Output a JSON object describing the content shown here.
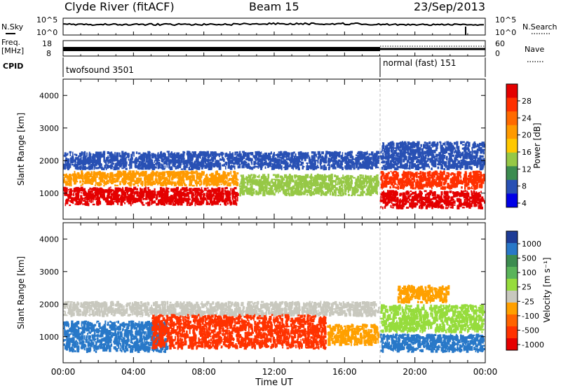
{
  "header": {
    "station": "Clyde River (fitACF)",
    "beam": "Beam 15",
    "date": "23/Sep/2013"
  },
  "top_panels": {
    "nsky_label": "N.Sky",
    "nsky_ticks": [
      "10^5",
      "10^0"
    ],
    "nsearch_label": "N.Search",
    "nsearch_ticks": [
      "10^5",
      "10^0"
    ],
    "freq_label": "Freq.",
    "freq_unit": "[MHz]",
    "freq_ticks": [
      "18",
      "8"
    ],
    "nave_label": "Nave",
    "nave_ticks": [
      "60",
      "0"
    ],
    "cpid_label": "CPID",
    "cpid_segments": [
      {
        "label": "twofsound 3501",
        "start_hour": 0,
        "end_hour": 18.1
      },
      {
        "label": "normal (fast) 151",
        "start_hour": 18.1,
        "end_hour": 24
      }
    ]
  },
  "chart_data": [
    {
      "type": "heatmap",
      "name": "power",
      "ylabel": "Slant Range [km]",
      "xlabel": "",
      "xlim": [
        0,
        24
      ],
      "ylim": [
        200,
        4500
      ],
      "y_ticks": [
        1000,
        2000,
        3000,
        4000
      ],
      "colorbar": {
        "label": "Power [dB]",
        "ticks": [
          "28",
          "24",
          "20",
          "16",
          "12",
          "8",
          "4"
        ],
        "colors": [
          "#e40000",
          "#ff3000",
          "#ff6a00",
          "#ff9a00",
          "#ffc800",
          "#96c846",
          "#3c8c50",
          "#2850b4",
          "#0000e6"
        ],
        "range": [
          0,
          30
        ]
      },
      "bands": [
        {
          "x_range": [
            0,
            10
          ],
          "y_range": [
            600,
            1200
          ],
          "level": "28"
        },
        {
          "x_range": [
            0,
            10
          ],
          "y_range": [
            1200,
            1700
          ],
          "level": "20"
        },
        {
          "x_range": [
            0,
            18
          ],
          "y_range": [
            1700,
            2300
          ],
          "level": "8"
        },
        {
          "x_range": [
            10,
            18
          ],
          "y_range": [
            900,
            1600
          ],
          "level": "12"
        },
        {
          "x_range": [
            18,
            24
          ],
          "y_range": [
            500,
            1100
          ],
          "level": "28"
        },
        {
          "x_range": [
            18,
            24
          ],
          "y_range": [
            1100,
            1700
          ],
          "level": "24"
        },
        {
          "x_range": [
            18,
            24
          ],
          "y_range": [
            1700,
            2600
          ],
          "level": "8"
        }
      ]
    },
    {
      "type": "heatmap",
      "name": "velocity",
      "ylabel": "Slant Range [km]",
      "xlabel": "Time UT",
      "xlim": [
        0,
        24
      ],
      "ylim": [
        200,
        4500
      ],
      "y_ticks": [
        1000,
        2000,
        3000,
        4000
      ],
      "x_tick_labels": [
        "00:00",
        "04:00",
        "08:00",
        "12:00",
        "16:00",
        "20:00",
        "00:00"
      ],
      "x_tick_values": [
        0,
        4,
        8,
        12,
        16,
        20,
        24
      ],
      "colorbar": {
        "label": "Velocity [m s⁻¹]",
        "ticks": [
          "1000",
          "500",
          "100",
          "25",
          "-25",
          "-100",
          "-500",
          "-1000"
        ],
        "colors": [
          "#1e3c96",
          "#2878c8",
          "#3c8c50",
          "#5ab45a",
          "#96dc3c",
          "#c8c8be",
          "#ffa000",
          "#ff6400",
          "#ff3200",
          "#e60000"
        ]
      },
      "bands": [
        {
          "x_range": [
            0,
            6
          ],
          "y_range": [
            500,
            1500
          ],
          "level": "500"
        },
        {
          "x_range": [
            0,
            18
          ],
          "y_range": [
            1600,
            2100
          ],
          "level": "-25"
        },
        {
          "x_range": [
            5,
            15
          ],
          "y_range": [
            600,
            1700
          ],
          "level": "-500"
        },
        {
          "x_range": [
            15,
            18
          ],
          "y_range": [
            700,
            1400
          ],
          "level": "-100"
        },
        {
          "x_range": [
            18,
            24
          ],
          "y_range": [
            1100,
            2000
          ],
          "level": "25"
        },
        {
          "x_range": [
            18,
            24
          ],
          "y_range": [
            500,
            1100
          ],
          "level": "500"
        },
        {
          "x_range": [
            19,
            22
          ],
          "y_range": [
            2000,
            2600
          ],
          "level": "-100"
        }
      ]
    }
  ]
}
